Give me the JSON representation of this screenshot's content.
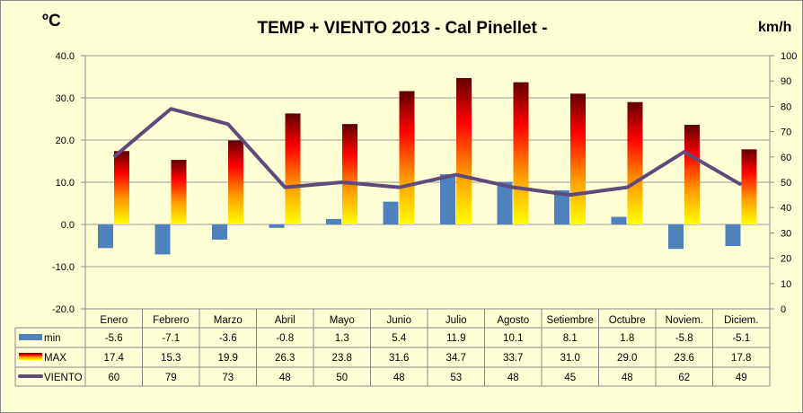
{
  "chart_data": {
    "type": "bar",
    "title": "TEMP + VIENTO 2013 - Cal Pinellet -",
    "ylabel_left": "ºC",
    "ylabel_right": "km/h",
    "ylim_left": [
      -20,
      40
    ],
    "ylim_right": [
      0,
      100
    ],
    "yticks_left": [
      "40.0",
      "30.0",
      "20.0",
      "10.0",
      "0.0",
      "-10.0",
      "-20.0"
    ],
    "yticks_right": [
      "100",
      "90",
      "80",
      "70",
      "60",
      "50",
      "40",
      "30",
      "20",
      "10",
      "0"
    ],
    "grid": true,
    "categories": [
      "Enero",
      "Febrero",
      "Marzo",
      "Abril",
      "Mayo",
      "Junio",
      "Julio",
      "Agosto",
      "Setiembre",
      "Octubre",
      "Noviem.",
      "Diciem."
    ],
    "series": [
      {
        "name": "min",
        "type": "bar",
        "axis": "left",
        "color": "#4f81bd",
        "values": [
          -5.6,
          -7.1,
          -3.6,
          -0.8,
          1.3,
          5.4,
          11.9,
          10.1,
          8.1,
          1.8,
          -5.8,
          -5.1
        ],
        "labels": [
          "-5.6",
          "-7.1",
          "-3.6",
          "-0.8",
          "1.3",
          "5.4",
          "11.9",
          "10.1",
          "8.1",
          "1.8",
          "-5.8",
          "-5.1"
        ]
      },
      {
        "name": "MAX",
        "type": "bar",
        "axis": "left",
        "gradient": [
          "#ffff00",
          "#ff8000",
          "#ff0000",
          "#600000"
        ],
        "values": [
          17.4,
          15.3,
          19.9,
          26.3,
          23.8,
          31.6,
          34.7,
          33.7,
          31.0,
          29.0,
          23.6,
          17.8
        ],
        "labels": [
          "17.4",
          "15.3",
          "19.9",
          "26.3",
          "23.8",
          "31.6",
          "34.7",
          "33.7",
          "31.0",
          "29.0",
          "23.6",
          "17.8"
        ]
      },
      {
        "name": "VIENTO",
        "type": "line",
        "axis": "right",
        "color": "#604a7b",
        "values": [
          60,
          79,
          73,
          48,
          50,
          48,
          53,
          48,
          45,
          48,
          62,
          49
        ],
        "labels": [
          "60",
          "79",
          "73",
          "48",
          "50",
          "48",
          "53",
          "48",
          "45",
          "48",
          "62",
          "49"
        ]
      }
    ],
    "legend": "data-table"
  }
}
